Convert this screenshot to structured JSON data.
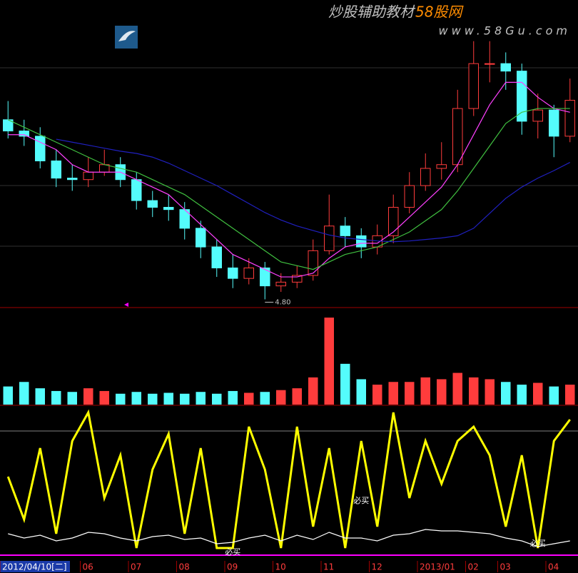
{
  "watermark": {
    "title": "炒股辅助教材",
    "brand": "58股网",
    "url": "www.58Gu.com"
  },
  "chart_data": [
    {
      "type": "candlestick",
      "open": [
        7.2,
        7.05,
        6.98,
        6.65,
        6.42,
        6.4,
        6.5,
        6.6,
        6.4,
        6.12,
        6.03,
        6.0,
        5.75,
        5.5,
        5.22,
        5.08,
        5.22,
        4.98,
        5.03,
        5.12,
        5.45,
        5.78,
        5.65,
        5.5,
        5.65,
        6.03,
        6.32,
        6.55,
        6.6,
        7.35,
        7.95,
        7.95,
        7.85,
        7.18,
        7.33,
        6.98
      ],
      "high": [
        7.45,
        7.2,
        7.1,
        6.8,
        6.6,
        6.7,
        6.8,
        6.7,
        6.5,
        6.25,
        6.2,
        6.1,
        5.85,
        5.6,
        5.4,
        5.35,
        5.3,
        5.15,
        5.25,
        5.6,
        6.2,
        5.9,
        5.75,
        5.8,
        6.2,
        6.5,
        6.75,
        6.9,
        7.6,
        8.25,
        8.25,
        8.1,
        7.95,
        7.55,
        7.4,
        7.75
      ],
      "low": [
        6.95,
        6.85,
        6.55,
        6.3,
        6.25,
        6.3,
        6.45,
        6.3,
        6.0,
        5.9,
        5.85,
        5.6,
        5.35,
        5.1,
        4.95,
        5.0,
        4.8,
        4.9,
        4.95,
        5.05,
        5.4,
        5.5,
        5.35,
        5.4,
        5.55,
        5.95,
        6.25,
        6.4,
        6.5,
        7.25,
        7.7,
        7.6,
        7.0,
        6.95,
        6.7,
        6.9
      ],
      "close": [
        7.05,
        6.98,
        6.65,
        6.42,
        6.4,
        6.5,
        6.6,
        6.4,
        6.12,
        6.03,
        6.0,
        5.75,
        5.5,
        5.22,
        5.08,
        5.22,
        4.98,
        5.03,
        5.12,
        5.45,
        5.78,
        5.65,
        5.5,
        5.65,
        6.03,
        6.32,
        6.55,
        6.6,
        7.35,
        7.95,
        7.95,
        7.85,
        7.18,
        7.33,
        6.98,
        7.46
      ],
      "up_color": "#ff3c3c",
      "down_color": "#54fcfc",
      "series": [
        {
          "color": "#ff40ff",
          "values": [
            7.0,
            7.0,
            6.9,
            6.8,
            6.6,
            6.5,
            6.5,
            6.5,
            6.4,
            6.3,
            6.2,
            6.0,
            5.8,
            5.6,
            5.4,
            5.3,
            5.2,
            5.1,
            5.1,
            5.15,
            5.35,
            5.5,
            5.55,
            5.55,
            5.7,
            5.9,
            6.1,
            6.3,
            6.6,
            7.0,
            7.4,
            7.7,
            7.7,
            7.5,
            7.35,
            7.3
          ]
        },
        {
          "color": "#40c040",
          "values": [
            7.2,
            7.1,
            7.0,
            6.9,
            6.8,
            6.7,
            6.6,
            6.55,
            6.5,
            6.4,
            6.3,
            6.2,
            6.05,
            5.9,
            5.75,
            5.6,
            5.45,
            5.3,
            5.25,
            5.2,
            5.3,
            5.4,
            5.45,
            5.5,
            5.6,
            5.7,
            5.85,
            6.0,
            6.25,
            6.55,
            6.85,
            7.15,
            7.3,
            7.35,
            7.35,
            7.35
          ]
        },
        {
          "color": "#2020c0",
          "values": [
            null,
            null,
            null,
            6.94,
            6.9,
            6.86,
            6.82,
            6.78,
            6.75,
            6.7,
            6.62,
            6.52,
            6.42,
            6.32,
            6.2,
            6.08,
            5.96,
            5.86,
            5.78,
            5.72,
            5.66,
            5.62,
            5.6,
            5.58,
            5.57,
            5.58,
            5.6,
            5.62,
            5.65,
            5.75,
            5.95,
            6.15,
            6.3,
            6.42,
            6.52,
            6.63
          ]
        }
      ],
      "ylim": [
        4.7,
        8.8
      ],
      "annotations": [
        {
          "index": 16,
          "value": 4.8,
          "label": "4.80"
        }
      ]
    },
    {
      "type": "bar",
      "values": [
        20,
        25,
        18,
        15,
        14,
        18,
        15,
        12,
        14,
        12,
        13,
        12,
        14,
        12,
        15,
        13,
        14,
        16,
        18,
        30,
        96,
        45,
        28,
        22,
        25,
        25,
        30,
        28,
        35,
        30,
        28,
        25,
        22,
        24,
        20,
        22
      ],
      "ylim": [
        0,
        100
      ]
    },
    {
      "type": "line",
      "categories": [
        "2012/04/10[二]",
        null,
        null,
        null,
        null,
        "06",
        null,
        null,
        "07",
        null,
        null,
        "08",
        null,
        null,
        "09",
        null,
        null,
        "10",
        null,
        null,
        "11",
        null,
        null,
        "12",
        null,
        null,
        "2013/01",
        null,
        null,
        "02",
        null,
        "03",
        null,
        null,
        "04",
        null
      ],
      "series": [
        {
          "color": "#ffff00",
          "values": [
            55,
            25,
            75,
            15,
            80,
            100,
            40,
            70,
            5,
            60,
            85,
            15,
            75,
            5,
            5,
            90,
            60,
            5,
            90,
            20,
            75,
            5,
            80,
            20,
            100,
            40,
            80,
            50,
            80,
            90,
            70,
            20,
            70,
            5,
            80,
            95
          ]
        },
        {
          "color": "#ffffff",
          "values": [
            15,
            12,
            14,
            10,
            12,
            16,
            15,
            12,
            10,
            13,
            14,
            11,
            12,
            8,
            9,
            12,
            14,
            10,
            14,
            11,
            16,
            12,
            12,
            10,
            14,
            15,
            18,
            17,
            17,
            16,
            15,
            12,
            10,
            6,
            8,
            10
          ]
        }
      ],
      "ylim": [
        0,
        100
      ],
      "hlines": [
        87
      ],
      "annotations": [
        {
          "index": 14,
          "value": 2,
          "label": "必买"
        },
        {
          "index": 22,
          "value": 38,
          "label": "必买"
        },
        {
          "index": 33,
          "value": 8,
          "label": "必买"
        }
      ]
    }
  ]
}
